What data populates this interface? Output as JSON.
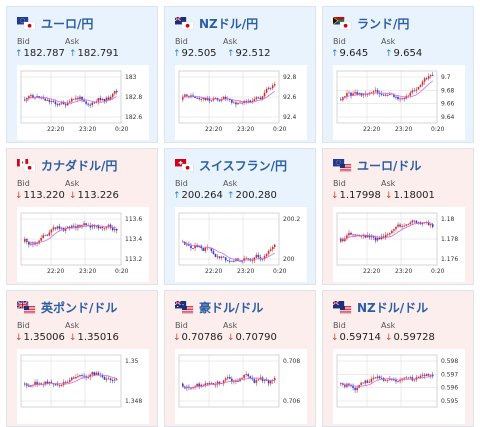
{
  "colors": {
    "up_bg": "#e8f3fd",
    "down_bg": "#fdeeee",
    "title": "#2b5ea3",
    "up_candle": "#d22c2c",
    "down_candle": "#2c3fcf",
    "ma": "#d66bd9",
    "grid": "#d8d8d8"
  },
  "cards": [
    {
      "flag_icon": "eu-jp-flag-icon",
      "pair": "ユーロ/円",
      "bid_label": "Bid",
      "ask_label": "Ask",
      "bid_arrow": "↑",
      "ask_arrow": "↑",
      "bid": "182.787",
      "ask": "182.791",
      "trend": "up",
      "y_ticks": [
        "183",
        "182.8",
        "182.6"
      ],
      "x_ticks": [
        "22:20",
        "23:20",
        "0:20"
      ]
    },
    {
      "flag_icon": "nz-jp-flag-icon",
      "pair": "NZドル/円",
      "bid_label": "Bid",
      "ask_label": "Ask",
      "bid_arrow": "↑",
      "ask_arrow": "↑",
      "bid": "92.505",
      "ask": "92.512",
      "trend": "up",
      "y_ticks": [
        "92.8",
        "92.6",
        "92.4"
      ],
      "x_ticks": [
        "22:20",
        "23:20",
        "0:20"
      ]
    },
    {
      "flag_icon": "za-jp-flag-icon",
      "pair": "ランド/円",
      "bid_label": "Bid",
      "ask_label": "Ask",
      "bid_arrow": "↑",
      "ask_arrow": "↑",
      "bid": "9.645",
      "ask": "9.654",
      "trend": "up",
      "y_ticks": [
        "9.7",
        "9.68",
        "9.66",
        "9.64"
      ],
      "x_ticks": [
        "22:20",
        "23:20",
        "0:20"
      ]
    },
    {
      "flag_icon": "ca-jp-flag-icon",
      "pair": "カナダドル/円",
      "bid_label": "Bid",
      "ask_label": "Ask",
      "bid_arrow": "↓",
      "ask_arrow": "↓",
      "bid": "113.220",
      "ask": "113.226",
      "trend": "down",
      "y_ticks": [
        "113.6",
        "113.4",
        "113.2"
      ],
      "x_ticks": [
        "22:20",
        "23:20",
        "0:20"
      ]
    },
    {
      "flag_icon": "ch-jp-flag-icon",
      "pair": "スイスフラン/円",
      "bid_label": "Bid",
      "ask_label": "Ask",
      "bid_arrow": "↑",
      "ask_arrow": "↑",
      "bid": "200.264",
      "ask": "200.280",
      "trend": "up",
      "y_ticks": [
        "200.2",
        "200"
      ],
      "x_ticks": [
        "22:20",
        "23:20",
        "0:20"
      ]
    },
    {
      "flag_icon": "eu-us-flag-icon",
      "pair": "ユーロ/ドル",
      "bid_label": "Bid",
      "ask_label": "Ask",
      "bid_arrow": "↓",
      "ask_arrow": "↓",
      "bid": "1.17998",
      "ask": "1.18001",
      "trend": "down",
      "y_ticks": [
        "1.18",
        "1.178",
        "1.176"
      ],
      "x_ticks": [
        "22:20",
        "23:20",
        "0:20"
      ]
    },
    {
      "flag_icon": "gb-us-flag-icon",
      "pair": "英ポンド/ドル",
      "bid_label": "Bid",
      "ask_label": "Ask",
      "bid_arrow": "↓",
      "ask_arrow": "↓",
      "bid": "1.35006",
      "ask": "1.35016",
      "trend": "down",
      "y_ticks": [
        "1.35",
        "1.348"
      ],
      "x_ticks": []
    },
    {
      "flag_icon": "au-us-flag-icon",
      "pair": "豪ドル/ドル",
      "bid_label": "Bid",
      "ask_label": "Ask",
      "bid_arrow": "↓",
      "ask_arrow": "↓",
      "bid": "0.70786",
      "ask": "0.70790",
      "trend": "down",
      "y_ticks": [
        "0.708",
        "0.706"
      ],
      "x_ticks": []
    },
    {
      "flag_icon": "nz-us-flag-icon",
      "pair": "NZドル/ドル",
      "bid_label": "Bid",
      "ask_label": "Ask",
      "bid_arrow": "↓",
      "ask_arrow": "↓",
      "bid": "0.59714",
      "ask": "0.59728",
      "trend": "down",
      "y_ticks": [
        "0.598",
        "0.597",
        "0.596",
        "0.595"
      ],
      "x_ticks": []
    }
  ]
}
